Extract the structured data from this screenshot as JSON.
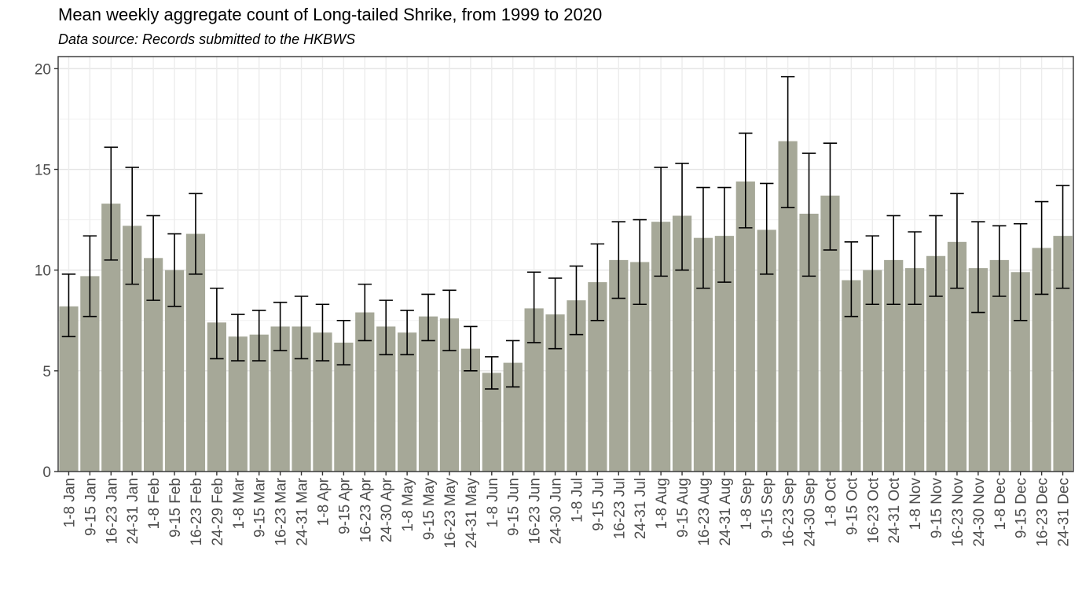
{
  "chart_data": {
    "type": "bar",
    "title": "Mean weekly aggregate count of Long-tailed Shrike, from 1999 to 2020",
    "subtitle": "Data source: Records submitted to the HKBWS",
    "xlabel": "",
    "ylabel": "",
    "ylim": [
      0,
      20.6
    ],
    "yticks": [
      0,
      5,
      10,
      15,
      20
    ],
    "grid": true,
    "error_bars": true,
    "bar_color": "#a6a898",
    "categories": [
      "1-8 Jan",
      "9-15 Jan",
      "16-23 Jan",
      "24-31 Jan",
      "1-8 Feb",
      "9-15 Feb",
      "16-23 Feb",
      "24-29 Feb",
      "1-8 Mar",
      "9-15 Mar",
      "16-23 Mar",
      "24-31 Mar",
      "1-8 Apr",
      "9-15 Apr",
      "16-23 Apr",
      "24-30 Apr",
      "1-8 May",
      "9-15 May",
      "16-23 May",
      "24-31 May",
      "1-8 Jun",
      "9-15 Jun",
      "16-23 Jun",
      "24-30 Jun",
      "1-8 Jul",
      "9-15 Jul",
      "16-23 Jul",
      "24-31 Jul",
      "1-8 Aug",
      "9-15 Aug",
      "16-23 Aug",
      "24-31 Aug",
      "1-8 Sep",
      "9-15 Sep",
      "16-23 Sep",
      "24-30 Sep",
      "1-8 Oct",
      "9-15 Oct",
      "16-23 Oct",
      "24-31 Oct",
      "1-8 Nov",
      "9-15 Nov",
      "16-23 Nov",
      "24-30 Nov",
      "1-8 Dec",
      "9-15 Dec",
      "16-23 Dec",
      "24-31 Dec"
    ],
    "values": [
      8.2,
      9.7,
      13.3,
      12.2,
      10.6,
      10.0,
      11.8,
      7.4,
      6.7,
      6.8,
      7.2,
      7.2,
      6.9,
      6.4,
      7.9,
      7.2,
      6.9,
      7.7,
      7.6,
      6.1,
      4.9,
      5.4,
      8.1,
      7.8,
      8.5,
      9.4,
      10.5,
      10.4,
      12.4,
      12.7,
      11.6,
      11.7,
      14.4,
      12.0,
      16.4,
      12.8,
      13.7,
      9.5,
      10.0,
      10.5,
      10.1,
      10.7,
      11.4,
      10.1,
      10.5,
      9.9,
      11.1,
      11.7
    ],
    "error_low": [
      6.7,
      7.7,
      10.5,
      9.3,
      8.5,
      8.2,
      9.8,
      5.6,
      5.5,
      5.5,
      6.0,
      5.6,
      5.5,
      5.3,
      6.5,
      5.8,
      5.8,
      6.5,
      6.0,
      5.0,
      4.1,
      4.2,
      6.4,
      6.1,
      6.8,
      7.5,
      8.6,
      8.3,
      9.7,
      10.0,
      9.1,
      9.4,
      12.1,
      9.8,
      13.1,
      9.7,
      11.0,
      7.7,
      8.3,
      8.3,
      8.3,
      8.7,
      9.1,
      7.9,
      8.7,
      7.5,
      8.8,
      9.1
    ],
    "error_high": [
      9.8,
      11.7,
      16.1,
      15.1,
      12.7,
      11.8,
      13.8,
      9.1,
      7.8,
      8.0,
      8.4,
      8.7,
      8.3,
      7.5,
      9.3,
      8.5,
      8.0,
      8.8,
      9.0,
      7.2,
      5.7,
      6.5,
      9.9,
      9.6,
      10.2,
      11.3,
      12.4,
      12.5,
      15.1,
      15.3,
      14.1,
      14.1,
      16.8,
      14.3,
      19.6,
      15.8,
      16.3,
      11.4,
      11.7,
      12.7,
      11.9,
      12.7,
      13.8,
      12.4,
      12.2,
      12.3,
      13.4,
      14.2
    ]
  }
}
